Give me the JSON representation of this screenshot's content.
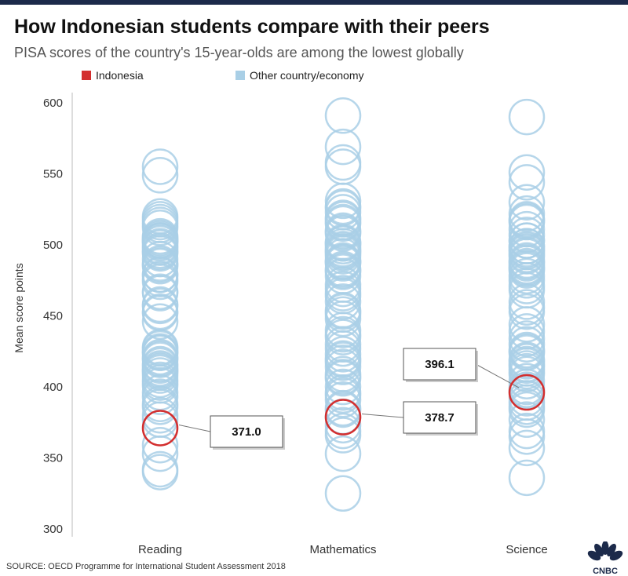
{
  "header": {
    "title": "How Indonesian students compare with their peers",
    "subtitle": "PISA scores of the country's 15-year-olds are among the lowest globally"
  },
  "legend": [
    {
      "label": "Indonesia",
      "color": "#d32f2f"
    },
    {
      "label": "Other country/economy",
      "color": "#a9cfe6"
    }
  ],
  "source": "SOURCE: OECD Programme for International Student Assessment 2018",
  "logo": {
    "text": "CNBC",
    "icon": "cnbc-peacock-logo"
  },
  "chart_data": {
    "type": "scatter",
    "ylabel": "Mean score points",
    "ylim": [
      300,
      600
    ],
    "yticks": [
      300,
      350,
      400,
      450,
      500,
      550,
      600
    ],
    "grid": false,
    "legend_placement": "top-left",
    "categories": [
      "Reading",
      "Mathematics",
      "Science"
    ],
    "highlight_series": "Indonesia",
    "highlight_values": [
      371.0,
      378.7,
      396.1
    ],
    "highlight_labels": [
      "371.0",
      "378.7",
      "396.1"
    ],
    "series": [
      {
        "name": "Other country/economy",
        "category": "Reading",
        "values": [
          555,
          549,
          520,
          518,
          516,
          514,
          512,
          506,
          505,
          504,
          503,
          503,
          502,
          501,
          499,
          498,
          496,
          495,
          494,
          490,
          487,
          486,
          485,
          479,
          479,
          476,
          474,
          467,
          466,
          458,
          457,
          453,
          452,
          446,
          428,
          427,
          425,
          424,
          424,
          421,
          420,
          419,
          416,
          415,
          413,
          412,
          411,
          410,
          408,
          405,
          403,
          401,
          396,
          393,
          388,
          386,
          380,
          377,
          359,
          353,
          342,
          340
        ]
      },
      {
        "name": "Other country/economy",
        "category": "Mathematics",
        "values": [
          591,
          569,
          558,
          555,
          531,
          527,
          526,
          523,
          519,
          518,
          516,
          515,
          510,
          509,
          508,
          502,
          501,
          501,
          499,
          497,
          496,
          495,
          494,
          492,
          489,
          488,
          488,
          487,
          483,
          482,
          481,
          478,
          472,
          469,
          466,
          464,
          460,
          454,
          453,
          451,
          448,
          440,
          437,
          435,
          430,
          427,
          423,
          420,
          419,
          417,
          414,
          409,
          407,
          406,
          400,
          396,
          394,
          391,
          385,
          384,
          379,
          373,
          369,
          366,
          353,
          325
        ]
      },
      {
        "name": "Other country/economy",
        "category": "Science",
        "values": [
          590,
          551,
          544,
          530,
          522,
          518,
          517,
          516,
          511,
          507,
          503,
          503,
          499,
          499,
          497,
          496,
          495,
          493,
          492,
          489,
          488,
          487,
          485,
          484,
          483,
          482,
          478,
          475,
          471,
          468,
          460,
          456,
          453,
          444,
          439,
          434,
          430,
          426,
          425,
          424,
          419,
          418,
          416,
          415,
          413,
          411,
          409,
          404,
          400,
          398,
          397,
          392,
          389,
          386,
          384,
          377,
          369,
          365,
          357,
          336
        ]
      }
    ]
  }
}
